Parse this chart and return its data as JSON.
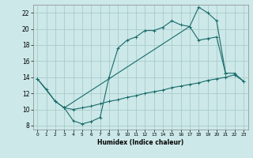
{
  "xlabel": "Humidex (Indice chaleur)",
  "background_color": "#cce8e8",
  "grid_color": "#aacccc",
  "line_color": "#1a6b6b",
  "xlim": [
    -0.5,
    23.5
  ],
  "ylim": [
    7.5,
    23.0
  ],
  "xticks": [
    0,
    1,
    2,
    3,
    4,
    5,
    6,
    7,
    8,
    9,
    10,
    11,
    12,
    13,
    14,
    15,
    16,
    17,
    18,
    19,
    20,
    21,
    22,
    23
  ],
  "yticks": [
    8,
    10,
    12,
    14,
    16,
    18,
    20,
    22
  ],
  "line1_x": [
    0,
    1,
    2,
    3,
    4,
    5,
    6,
    7,
    8,
    9,
    10,
    11,
    12,
    13,
    14,
    15,
    16,
    17,
    18,
    19,
    20,
    21
  ],
  "line1_y": [
    13.8,
    12.5,
    11.0,
    10.2,
    8.6,
    8.2,
    8.5,
    9.0,
    14.0,
    17.6,
    18.6,
    19.0,
    19.8,
    19.8,
    20.2,
    21.0,
    20.5,
    20.3,
    22.7,
    22.0,
    21.0,
    14.5
  ],
  "line2_x": [
    0,
    2,
    3,
    17,
    18,
    19,
    20,
    21,
    22,
    23
  ],
  "line2_y": [
    13.8,
    11.0,
    10.2,
    20.3,
    18.6,
    18.8,
    19.0,
    14.5,
    14.5,
    13.5
  ],
  "line3_x": [
    3,
    4,
    5,
    6,
    7,
    8,
    9,
    10,
    11,
    12,
    13,
    14,
    15,
    16,
    17,
    18,
    19,
    20,
    21,
    22,
    23
  ],
  "line3_y": [
    10.2,
    10.0,
    10.2,
    10.4,
    10.7,
    11.0,
    11.2,
    11.5,
    11.7,
    12.0,
    12.2,
    12.4,
    12.7,
    12.9,
    13.1,
    13.3,
    13.6,
    13.8,
    14.0,
    14.3,
    13.5
  ]
}
